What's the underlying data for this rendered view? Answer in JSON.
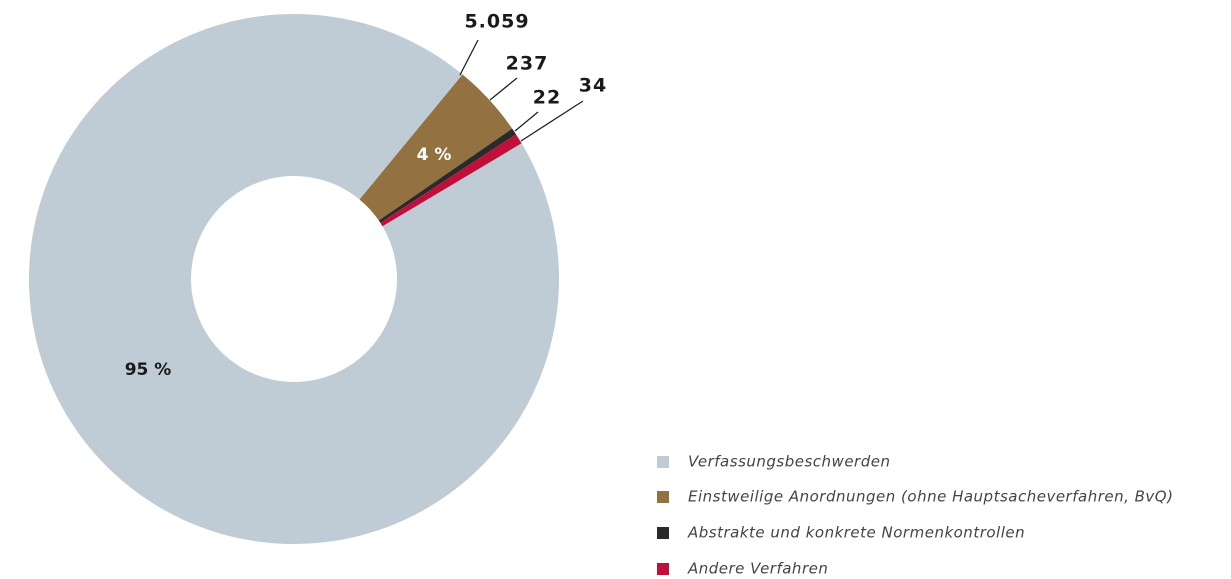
{
  "chart_data": {
    "type": "donut",
    "categories": [
      "Verfassungsbeschwerden",
      "Einstweilige Anordnungen (ohne Hauptsacheverfahren, BvQ)",
      "Abstrakte und konkrete Normenkontrollen",
      "Andere Verfahren"
    ],
    "values": [
      5059,
      237,
      22,
      34
    ],
    "value_labels": [
      "5.059",
      "237",
      "22",
      "34"
    ],
    "percent_labels": [
      "95 %",
      "4 %",
      null,
      null
    ],
    "colors": [
      "#bfccd5",
      "#937140",
      "#2a2a2a",
      "#c10f3c"
    ]
  }
}
